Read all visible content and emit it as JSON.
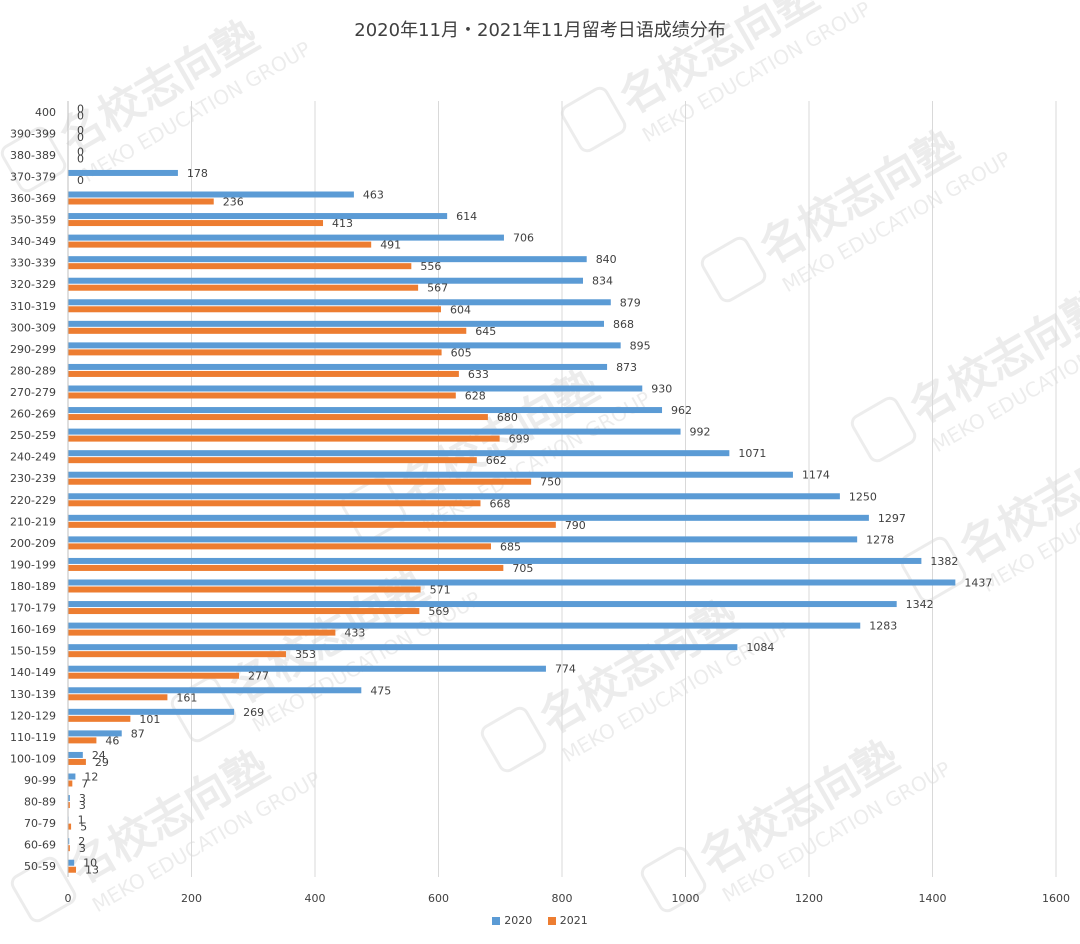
{
  "chart_data": {
    "type": "bar",
    "orientation": "horizontal",
    "title": "2020年11月・2021年11月留考日语成绩分布",
    "categories": [
      "400",
      "390-399",
      "380-389",
      "370-379",
      "360-369",
      "350-359",
      "340-349",
      "330-339",
      "320-329",
      "310-319",
      "300-309",
      "290-299",
      "280-289",
      "270-279",
      "260-269",
      "250-259",
      "240-249",
      "230-239",
      "220-229",
      "210-219",
      "200-209",
      "190-199",
      "180-189",
      "170-179",
      "160-169",
      "150-159",
      "140-149",
      "130-139",
      "120-129",
      "110-119",
      "100-109",
      "90-99",
      "80-89",
      "70-79",
      "60-69",
      "50-59"
    ],
    "series": [
      {
        "name": "2020",
        "color": "#5b9bd5",
        "values": [
          0,
          0,
          0,
          178,
          463,
          614,
          706,
          840,
          834,
          879,
          868,
          895,
          873,
          930,
          962,
          992,
          1071,
          1174,
          1250,
          1297,
          1278,
          1382,
          1437,
          1342,
          1283,
          1084,
          774,
          475,
          269,
          87,
          24,
          12,
          3,
          1,
          2,
          10
        ]
      },
      {
        "name": "2021",
        "color": "#ed7d31",
        "values": [
          0,
          0,
          0,
          0,
          236,
          413,
          491,
          556,
          567,
          604,
          645,
          605,
          633,
          628,
          680,
          699,
          662,
          750,
          668,
          790,
          685,
          705,
          571,
          569,
          433,
          353,
          277,
          161,
          101,
          46,
          29,
          7,
          3,
          5,
          3,
          13
        ]
      }
    ],
    "xlim": [
      0,
      1600
    ],
    "xticks": [
      0,
      200,
      400,
      600,
      800,
      1000,
      1200,
      1400,
      1600
    ],
    "grid": true,
    "legend_position": "bottom"
  },
  "watermark": {
    "brand": "名校志向塾",
    "english": "MEKO EDUCATION GROUP",
    "seal_text": "名"
  }
}
